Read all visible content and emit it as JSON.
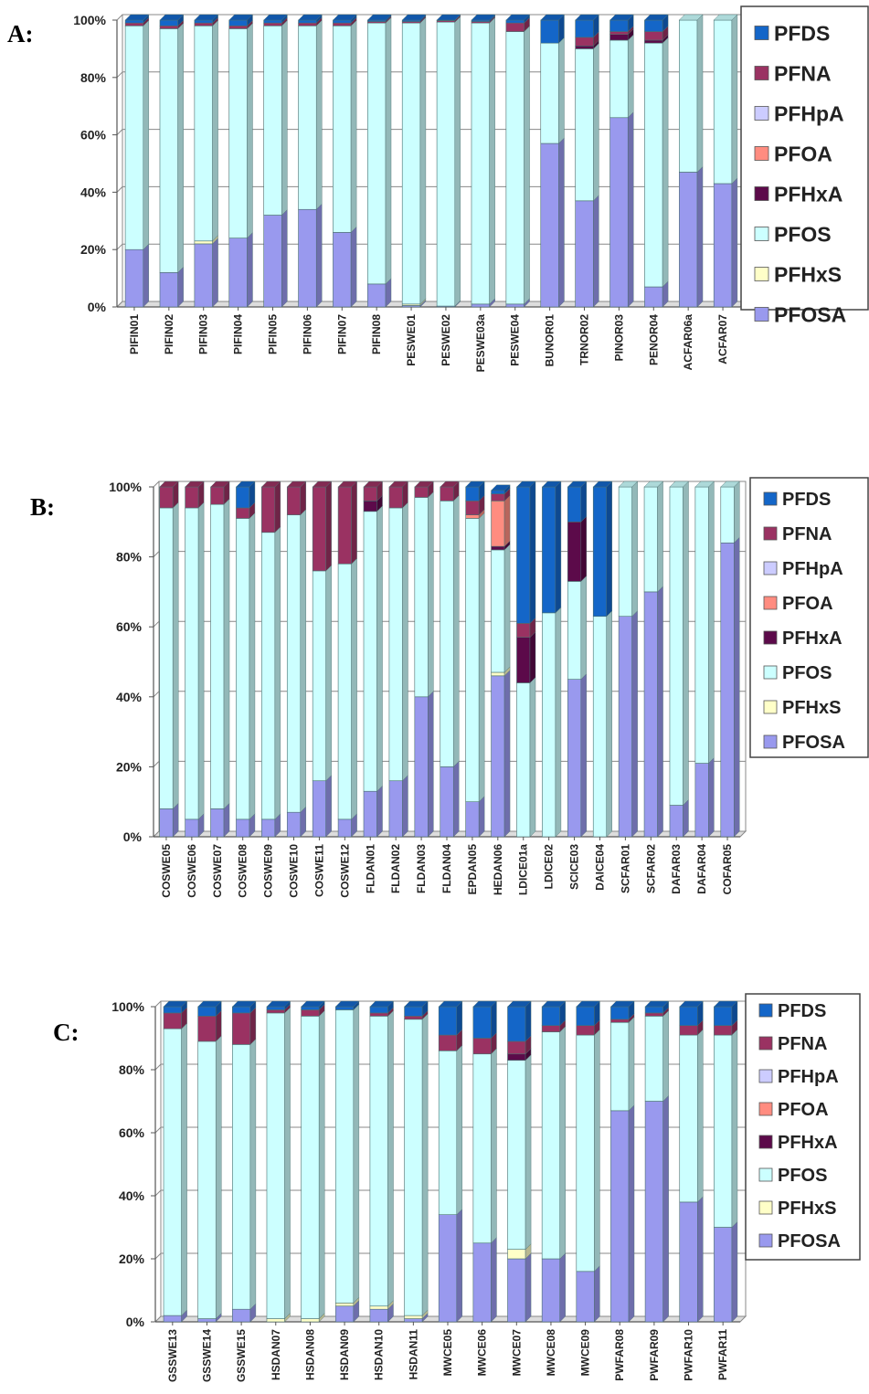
{
  "stack_order": [
    "PFOSA",
    "PFHxS",
    "PFOS",
    "PFHxA",
    "PFOA",
    "PFHpA",
    "PFNA",
    "PFDS"
  ],
  "colors": {
    "PFOSA": "#9999ee",
    "PFHxS": "#ffffc8",
    "PFOS": "#ccffff",
    "PFHxA": "#5c0a4a",
    "PFOA": "#ff8c80",
    "PFHpA": "#ccccff",
    "PFNA": "#9a3262",
    "PFDS": "#1466c8"
  },
  "chart_data": [
    {
      "panel": "A:",
      "type": "bar",
      "stacked": true,
      "percent": true,
      "ylim": [
        0,
        100
      ],
      "yticks": [
        "0%",
        "20%",
        "40%",
        "60%",
        "80%",
        "100%"
      ],
      "legend": [
        "PFDS",
        "PFNA",
        "PFHpA",
        "PFOA",
        "PFHxA",
        "PFOS",
        "PFHxS",
        "PFOSA"
      ],
      "categories": [
        "PIFIN01",
        "PIFIN02",
        "PIFIN03",
        "PIFIN04",
        "PIFIN05",
        "PIFIN06",
        "PIFIN07",
        "PIFIN08",
        "PESWE01",
        "PESWE02",
        "PESWE03a",
        "PESWE04",
        "BUNOR01",
        "TRNOR02",
        "PINOR03",
        "PENOR04",
        "ACFAR06a",
        "ACFAR07"
      ],
      "series": [
        {
          "name": "PFOSA",
          "values": [
            20,
            12,
            22,
            24,
            32,
            34,
            26,
            8,
            0.5,
            0.3,
            1,
            1,
            57,
            37,
            66,
            7,
            47,
            43
          ]
        },
        {
          "name": "PFHxS",
          "values": [
            0,
            0,
            1,
            0,
            0,
            0,
            0,
            0,
            0.5,
            0,
            0,
            0,
            0,
            0,
            0,
            0,
            0,
            0
          ]
        },
        {
          "name": "PFOS",
          "values": [
            78,
            85,
            75,
            73,
            66,
            64,
            72,
            91,
            98,
            99,
            98,
            95,
            35,
            53,
            27,
            85,
            53,
            57
          ]
        },
        {
          "name": "PFHxA",
          "values": [
            0,
            0,
            0,
            0,
            0,
            0,
            0,
            0,
            0,
            0,
            0,
            0,
            0,
            1,
            2,
            1,
            0,
            0
          ]
        },
        {
          "name": "PFOA",
          "values": [
            0,
            0,
            0,
            0,
            0,
            0,
            0,
            0,
            0,
            0,
            0,
            0,
            0,
            0,
            0,
            0,
            0,
            0
          ]
        },
        {
          "name": "PFHpA",
          "values": [
            0,
            0,
            0,
            0,
            0,
            0,
            0,
            0,
            0,
            0,
            0,
            0,
            0,
            0,
            0,
            0,
            0,
            0
          ]
        },
        {
          "name": "PFNA",
          "values": [
            1,
            1,
            1,
            1,
            1,
            1,
            1,
            0.5,
            0.5,
            0.5,
            0.5,
            3,
            0,
            3,
            1,
            3,
            0,
            0
          ]
        },
        {
          "name": "PFDS",
          "values": [
            1,
            2,
            1,
            2,
            1,
            1,
            1,
            0.5,
            0.5,
            0.2,
            0.5,
            1,
            8,
            6,
            4,
            4,
            0,
            0
          ]
        }
      ]
    },
    {
      "panel": "B:",
      "type": "bar",
      "stacked": true,
      "percent": true,
      "ylim": [
        0,
        100
      ],
      "yticks": [
        "0%",
        "20%",
        "40%",
        "60%",
        "80%",
        "100%"
      ],
      "legend": [
        "PFDS",
        "PFNA",
        "PFHpA",
        "PFOA",
        "PFHxA",
        "PFOS",
        "PFHxS",
        "PFOSA"
      ],
      "categories": [
        "COSWE05",
        "COSWE06",
        "COSWE07",
        "COSWE08",
        "COSWE09",
        "COSWE10",
        "COSWE11",
        "COSWE12",
        "FLDAN01",
        "FLDAN02",
        "FLDAN03",
        "FLDAN04",
        "EPDAN05",
        "HEDAN06",
        "LDICE01a",
        "LDICE02",
        "SCICE03",
        "DAICE04",
        "SCFAR01",
        "SCFAR02",
        "DAFAR03",
        "DAFAR04",
        "COFAR05"
      ],
      "series": [
        {
          "name": "PFOSA",
          "values": [
            8,
            5,
            8,
            5,
            5,
            7,
            16,
            5,
            13,
            16,
            40,
            20,
            10,
            46,
            0,
            0,
            45,
            0,
            63,
            70,
            9,
            21,
            84
          ]
        },
        {
          "name": "PFHxS",
          "values": [
            0,
            0,
            0,
            0,
            0,
            0,
            0,
            0,
            0,
            0,
            0,
            0,
            0,
            1,
            0,
            0,
            0,
            0,
            0,
            0,
            0,
            0,
            0
          ]
        },
        {
          "name": "PFOS",
          "values": [
            86,
            89,
            87,
            86,
            82,
            85,
            60,
            73,
            80,
            78,
            57,
            76,
            81,
            35,
            44,
            64,
            28,
            63,
            37,
            30,
            91,
            79,
            16
          ]
        },
        {
          "name": "PFHxA",
          "values": [
            0,
            0,
            0,
            0,
            0,
            0,
            0,
            0,
            3,
            0,
            0,
            0,
            0,
            1,
            13,
            0,
            17,
            0,
            0,
            0,
            0,
            0,
            0
          ]
        },
        {
          "name": "PFOA",
          "values": [
            0,
            0,
            0,
            0,
            0,
            0,
            0,
            0,
            0,
            0,
            0,
            0,
            1,
            13,
            0,
            0,
            0,
            0,
            0,
            0,
            0,
            0,
            0
          ]
        },
        {
          "name": "PFHpA",
          "values": [
            0,
            0,
            0,
            0,
            0,
            0,
            0,
            0,
            0,
            0,
            0,
            0,
            0,
            0,
            0,
            0,
            0,
            0,
            0,
            0,
            0,
            0,
            0
          ]
        },
        {
          "name": "PFNA",
          "values": [
            6,
            6,
            5,
            3,
            13,
            8,
            24,
            22,
            4,
            6,
            3,
            4,
            4,
            2,
            4,
            0,
            0,
            0,
            0,
            0,
            0,
            0,
            0
          ]
        },
        {
          "name": "PFDS",
          "values": [
            0,
            0,
            0,
            6,
            0,
            0,
            0,
            0,
            0,
            0,
            0,
            0,
            4,
            1,
            39,
            36,
            10,
            37,
            0,
            0,
            0,
            0,
            0
          ]
        }
      ]
    },
    {
      "panel": "C:",
      "type": "bar",
      "stacked": true,
      "percent": true,
      "ylim": [
        0,
        100
      ],
      "yticks": [
        "0%",
        "20%",
        "40%",
        "60%",
        "80%",
        "100%"
      ],
      "legend": [
        "PFDS",
        "PFNA",
        "PFHpA",
        "PFOA",
        "PFHxA",
        "PFOS",
        "PFHxS",
        "PFOSA"
      ],
      "categories": [
        "GSSWE13",
        "GSSWE14",
        "GSSWE15",
        "HSDAN07",
        "HSDAN08",
        "HSDAN09",
        "HSDAN10",
        "HSDAN11",
        "MWCE05",
        "MWCE06",
        "MWCE07",
        "MWCE08",
        "MWCE09",
        "PWFAR08",
        "PWFAR09",
        "PWFAR10",
        "PWFAR11"
      ],
      "series": [
        {
          "name": "PFOSA",
          "values": [
            2,
            1,
            4,
            0,
            0,
            5,
            4,
            1,
            34,
            25,
            20,
            20,
            16,
            67,
            70,
            38,
            30
          ]
        },
        {
          "name": "PFHxS",
          "values": [
            0,
            0,
            0,
            1,
            1,
            1,
            1,
            1,
            0,
            0,
            3,
            0,
            0,
            0,
            0,
            0,
            0
          ]
        },
        {
          "name": "PFOS",
          "values": [
            91,
            88,
            84,
            97,
            96,
            93,
            92,
            94,
            52,
            60,
            60,
            72,
            75,
            28,
            27,
            53,
            61
          ]
        },
        {
          "name": "PFHxA",
          "values": [
            0,
            0,
            0,
            0,
            0,
            0,
            0,
            0,
            0,
            0,
            2,
            0,
            0,
            0,
            0,
            0,
            0
          ]
        },
        {
          "name": "PFOA",
          "values": [
            0,
            0,
            0,
            0,
            0,
            0,
            0,
            0,
            0,
            0,
            0,
            0,
            0,
            0,
            0,
            0,
            0
          ]
        },
        {
          "name": "PFHpA",
          "values": [
            0,
            0,
            0,
            0,
            0,
            0,
            0,
            0,
            0,
            0,
            0,
            0,
            0,
            0,
            0,
            0,
            0
          ]
        },
        {
          "name": "PFNA",
          "values": [
            5,
            8,
            10,
            1,
            2,
            0,
            1,
            1,
            5,
            5,
            4,
            2,
            3,
            1,
            1,
            3,
            3
          ]
        },
        {
          "name": "PFDS",
          "values": [
            2,
            3,
            2,
            1,
            1,
            1,
            2,
            3,
            9,
            10,
            11,
            6,
            6,
            4,
            2,
            6,
            6
          ]
        }
      ]
    }
  ]
}
